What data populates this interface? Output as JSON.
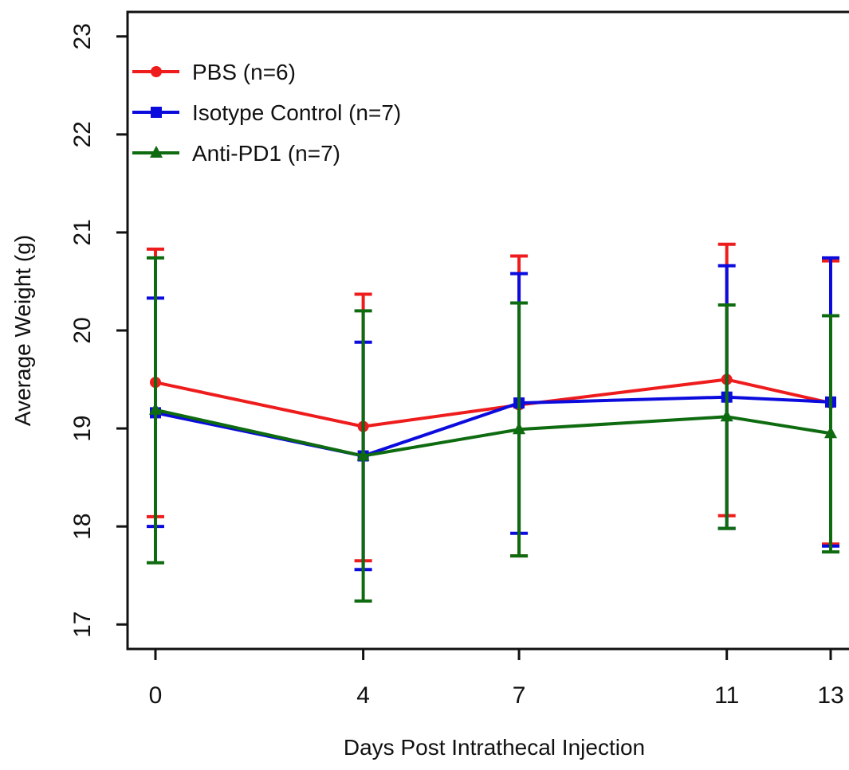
{
  "chart_data": {
    "type": "line",
    "x": [
      0,
      4,
      7,
      11,
      13
    ],
    "xlabel": "Days Post Intrathecal Injection",
    "ylabel": "Average Weight (g)",
    "xlim": [
      -0.5,
      13.3
    ],
    "ylim": [
      16.75,
      23.25
    ],
    "x_ticks": [
      0,
      4,
      7,
      11,
      13
    ],
    "y_ticks": [
      17,
      18,
      19,
      20,
      21,
      22,
      23
    ],
    "grid": false,
    "legend_position": "top-left",
    "series": [
      {
        "name": "PBS (n=6)",
        "color": "#ee1c1c",
        "marker": "circle",
        "values": [
          19.47,
          19.02,
          19.24,
          19.5,
          19.26
        ],
        "error_low": [
          18.1,
          17.65,
          17.7,
          18.11,
          17.82
        ],
        "error_high": [
          20.83,
          20.37,
          20.76,
          20.88,
          20.71
        ]
      },
      {
        "name": "Isotype Control (n=7)",
        "color": "#0b0bdd",
        "marker": "square",
        "values": [
          19.16,
          18.72,
          19.26,
          19.32,
          19.27
        ],
        "error_low": [
          18.0,
          17.56,
          17.93,
          17.98,
          17.8
        ],
        "error_high": [
          20.33,
          19.88,
          20.58,
          20.66,
          20.74
        ]
      },
      {
        "name": "Anti-PD1 (n=7)",
        "color": "#0e6b10",
        "marker": "triangle",
        "values": [
          19.19,
          18.72,
          18.99,
          19.12,
          18.95
        ],
        "error_low": [
          17.63,
          17.24,
          17.7,
          17.98,
          17.74
        ],
        "error_high": [
          20.74,
          20.2,
          20.28,
          20.26,
          20.15
        ]
      }
    ]
  }
}
